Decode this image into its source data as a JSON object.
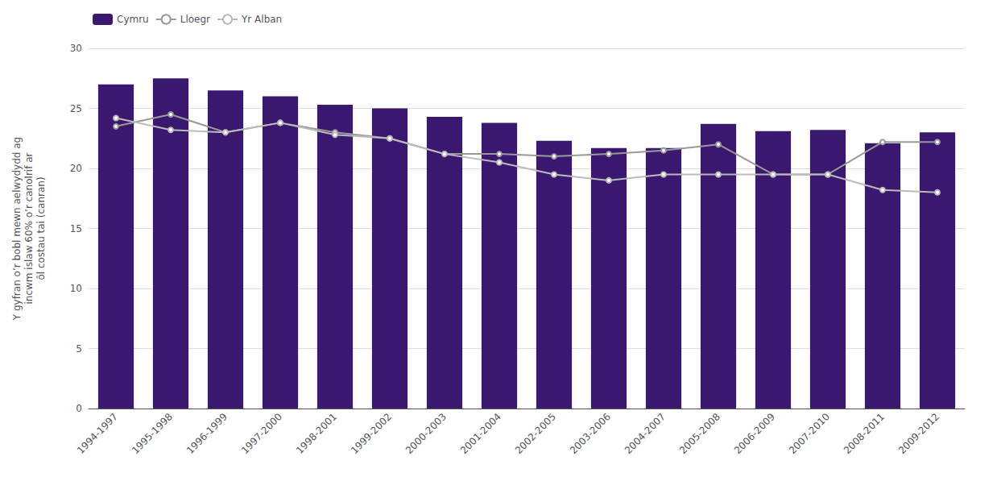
{
  "chart_data": {
    "type": "bar",
    "ylabel": "Y gyfran o’r bobl mewn aelwydydd ag\nincwm islaw 60% o’r canolrif ar\nôl costau tai (canran)",
    "categories": [
      "1994-1997",
      "1995-1998",
      "1996-1999",
      "1997-2000",
      "1998-2001",
      "1999-2002",
      "2000-2003",
      "2001-2004",
      "2002-2005",
      "2003-2006",
      "2004-2007",
      "2005-2008",
      "2006-2009",
      "2007-2010",
      "2008-2011",
      "2009-2012"
    ],
    "series": [
      {
        "name": "Cymru",
        "type": "bar",
        "color": "#3b1870",
        "values": [
          27.0,
          27.5,
          26.5,
          26.0,
          25.3,
          25.0,
          24.3,
          23.8,
          22.3,
          21.7,
          21.7,
          23.7,
          23.1,
          23.2,
          22.1,
          23.0
        ]
      },
      {
        "name": "Lloegr",
        "type": "line",
        "color": "#999999",
        "values": [
          23.5,
          24.5,
          23.0,
          23.8,
          23.0,
          22.5,
          21.2,
          21.2,
          21.0,
          21.2,
          21.5,
          22.0,
          19.5,
          19.5,
          22.2,
          22.2
        ]
      },
      {
        "name": "Yr Alban",
        "type": "line",
        "color": "#bbbbbb",
        "values": [
          24.2,
          23.2,
          23.0,
          23.8,
          22.8,
          22.5,
          21.2,
          20.5,
          19.5,
          19.0,
          19.5,
          19.5,
          19.5,
          19.5,
          18.2,
          18.0
        ]
      }
    ],
    "ylim": [
      0,
      30
    ],
    "yticks": [
      0,
      5,
      10,
      15,
      20,
      25,
      30
    ],
    "grid": true,
    "legend": "top"
  }
}
